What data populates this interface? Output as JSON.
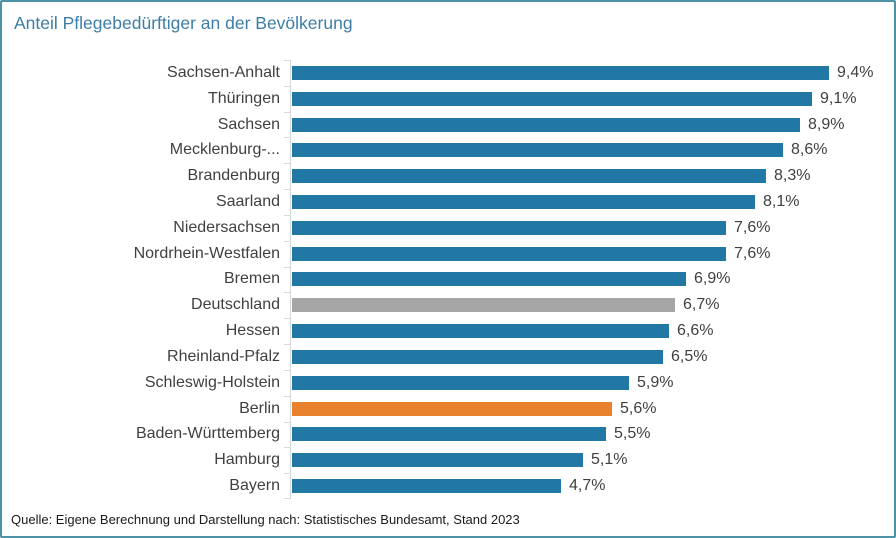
{
  "title": "Anteil Pflegebedürftiger an der Bevölkerung",
  "source_note": "Quelle: Eigene Berechnung und Darstellung nach: Statistisches Bundesamt, Stand 2023",
  "colors": {
    "title_text": "#3D7EA8",
    "label_text": "#404040",
    "bar_default": "#2278A5",
    "bar_national_average": "#A6A6A6",
    "bar_highlight": "#E8822F",
    "axis_line": "#D9D9D9",
    "frame_border": "#4E93A5"
  },
  "chart_data": {
    "type": "bar",
    "orientation": "horizontal",
    "title": "Anteil Pflegebedürftiger an der Bevölkerung",
    "value_suffix": "%",
    "decimal_separator": ",",
    "xlim": [
      0,
      10
    ],
    "grid": false,
    "legend": false,
    "highlighted_category": "Berlin",
    "national_average_category": "Deutschland",
    "categories": [
      "Sachsen-Anhalt",
      "Thüringen",
      "Sachsen",
      "Mecklenburg-...",
      "Brandenburg",
      "Saarland",
      "Niedersachsen",
      "Nordrhein-Westfalen",
      "Bremen",
      "Deutschland",
      "Hessen",
      "Rheinland-Pfalz",
      "Schleswig-Holstein",
      "Berlin",
      "Baden-Württemberg",
      "Hamburg",
      "Bayern"
    ],
    "values": [
      9.4,
      9.1,
      8.9,
      8.6,
      8.3,
      8.1,
      7.6,
      7.6,
      6.9,
      6.7,
      6.6,
      6.5,
      5.9,
      5.6,
      5.5,
      5.1,
      4.7
    ],
    "value_labels": [
      "9,4%",
      "9,1%",
      "8,9%",
      "8,6%",
      "8,3%",
      "8,1%",
      "7,6%",
      "7,6%",
      "6,9%",
      "6,7%",
      "6,6%",
      "6,5%",
      "5,9%",
      "5,6%",
      "5,5%",
      "5,1%",
      "4,7%"
    ],
    "bar_roles": [
      "default",
      "default",
      "default",
      "default",
      "default",
      "default",
      "default",
      "default",
      "default",
      "national",
      "default",
      "default",
      "default",
      "highlight",
      "default",
      "default",
      "default"
    ]
  }
}
